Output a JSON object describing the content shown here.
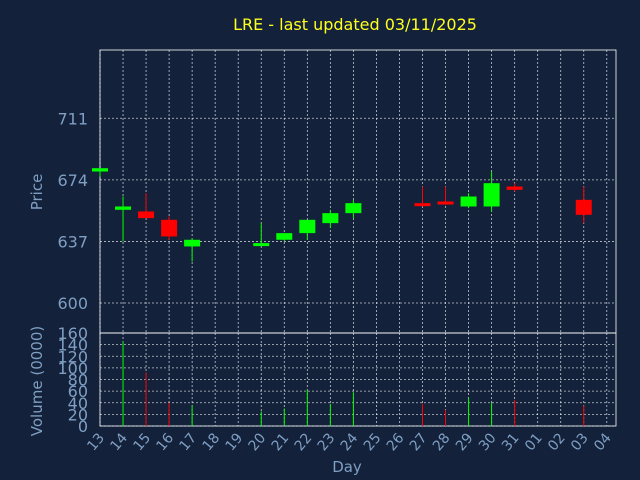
{
  "chart_data": {
    "type": "candlestick",
    "title": "LRE - last updated 03/11/2025",
    "xlabel": "Day",
    "colors": {
      "background": "#13213a",
      "up": "#00ff00",
      "down": "#ff0000",
      "title": "#ffff1e",
      "axis_text": "#7f9fc3"
    },
    "x_ticks": [
      "13",
      "14",
      "15",
      "16",
      "17",
      "18",
      "19",
      "20",
      "21",
      "22",
      "23",
      "24",
      "25",
      "26",
      "27",
      "28",
      "29",
      "30",
      "31",
      "01",
      "02",
      "03",
      "04"
    ],
    "price_panel": {
      "ylabel": "Price",
      "ylim": [
        582,
        752
      ],
      "yticks": [
        600,
        637,
        674,
        711
      ],
      "grid": true
    },
    "volume_panel": {
      "ylabel": "Volume (0000)",
      "ylim": [
        0,
        160
      ],
      "yticks": [
        0,
        20,
        40,
        60,
        80,
        100,
        120,
        140,
        160
      ],
      "grid": true
    },
    "candles": [
      {
        "x": 13.0,
        "open": 679,
        "high": 681,
        "low": 676,
        "close": 681,
        "volume": 0
      },
      {
        "x": 14.0,
        "open": 656,
        "high": 664,
        "low": 637,
        "close": 658,
        "volume": 145
      },
      {
        "x": 15.0,
        "open": 655,
        "high": 666,
        "low": 651,
        "close": 651,
        "volume": 92
      },
      {
        "x": 16.0,
        "open": 650,
        "high": 652,
        "low": 638,
        "close": 640,
        "volume": 40
      },
      {
        "x": 17.0,
        "open": 634,
        "high": 639,
        "low": 625,
        "close": 638,
        "volume": 35
      },
      {
        "x": 20.0,
        "open": 635,
        "high": 648,
        "low": 634,
        "close": 636,
        "volume": 25
      },
      {
        "x": 21.0,
        "open": 638,
        "high": 642,
        "low": 637,
        "close": 642,
        "volume": 30
      },
      {
        "x": 22.0,
        "open": 642,
        "high": 650,
        "low": 638,
        "close": 650,
        "volume": 62
      },
      {
        "x": 23.0,
        "open": 648,
        "high": 656,
        "low": 645,
        "close": 654,
        "volume": 38
      },
      {
        "x": 24.0,
        "open": 654,
        "high": 662,
        "low": 651,
        "close": 660,
        "volume": 58
      },
      {
        "x": 27.0,
        "open": 660,
        "high": 670,
        "low": 658,
        "close": 659,
        "volume": 38
      },
      {
        "x": 28.0,
        "open": 661,
        "high": 670,
        "low": 659,
        "close": 660,
        "volume": 28
      },
      {
        "x": 29.0,
        "open": 658,
        "high": 666,
        "low": 657,
        "close": 664,
        "volume": 48
      },
      {
        "x": 30.0,
        "open": 658,
        "high": 679,
        "low": 655,
        "close": 672,
        "volume": 40
      },
      {
        "x": 31.0,
        "open": 670,
        "high": 672,
        "low": 667,
        "close": 668,
        "volume": 45
      },
      {
        "x": 34.0,
        "open": 662,
        "high": 670,
        "low": 648,
        "close": 653,
        "volume": 35
      }
    ]
  }
}
